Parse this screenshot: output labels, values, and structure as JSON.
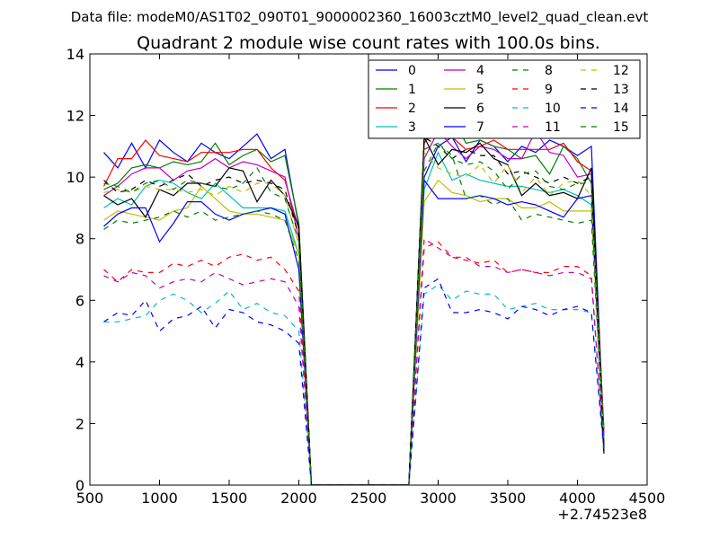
{
  "suptitle": "Data file: modeM0/AS1T02_090T01_9000002360_16003cztM0_level2_quad_clean.evt",
  "chart_data": {
    "type": "line",
    "title": "Quadrant 2 module wise count rates with 100.0s bins.",
    "xlabel": "",
    "ylabel": "",
    "x_offset_label": "+2.74523e8",
    "xlim": [
      500,
      4500
    ],
    "ylim": [
      0,
      14
    ],
    "xticks": [
      500,
      1000,
      1500,
      2000,
      2500,
      3000,
      3500,
      4000,
      4500
    ],
    "yticks": [
      0,
      2,
      4,
      6,
      8,
      10,
      12,
      14
    ],
    "grid": false,
    "legend": {
      "placement": "top-right",
      "columns": 4
    },
    "x": [
      600,
      700,
      800,
      900,
      1000,
      1100,
      1200,
      1300,
      1400,
      1500,
      1600,
      1700,
      1800,
      1900,
      2000,
      2090,
      2790,
      2900,
      3000,
      3100,
      3200,
      3300,
      3400,
      3500,
      3600,
      3700,
      3800,
      3900,
      4000,
      4100,
      4190
    ],
    "series": [
      {
        "name": "0",
        "color": "#0000ff",
        "dash": "solid",
        "values": [
          10.8,
          10.3,
          11.1,
          10.3,
          11.2,
          10.8,
          10.5,
          11.1,
          10.8,
          10.6,
          11.0,
          11.4,
          10.6,
          10.9,
          8.4,
          0,
          0,
          10.0,
          11.0,
          11.3,
          10.5,
          11.2,
          11.0,
          10.5,
          11.0,
          10.8,
          11.2,
          11.0,
          10.7,
          11.0,
          1.5
        ]
      },
      {
        "name": "1",
        "color": "#008000",
        "dash": "solid",
        "values": [
          9.6,
          9.8,
          10.3,
          10.4,
          10.3,
          10.5,
          10.4,
          10.5,
          11.1,
          10.4,
          10.7,
          10.9,
          10.5,
          10.7,
          8.5,
          0,
          0,
          11.2,
          12.0,
          12.0,
          11.1,
          11.2,
          11.0,
          10.9,
          10.6,
          10.7,
          10.1,
          11.0,
          10.6,
          9.8,
          1.8
        ]
      },
      {
        "name": "2",
        "color": "#ff0000",
        "dash": "solid",
        "values": [
          9.7,
          10.6,
          10.6,
          11.2,
          10.7,
          10.6,
          10.5,
          10.8,
          10.8,
          10.8,
          10.9,
          10.9,
          10.3,
          9.9,
          8.3,
          0,
          0,
          11.1,
          11.7,
          11.3,
          10.9,
          11.0,
          11.2,
          10.9,
          10.9,
          10.9,
          10.9,
          11.1,
          10.5,
          10.2,
          1.5
        ]
      },
      {
        "name": "3",
        "color": "#00bfbf",
        "dash": "solid",
        "values": [
          9.0,
          9.3,
          9.1,
          9.7,
          9.9,
          9.8,
          9.5,
          9.3,
          9.8,
          9.4,
          9.0,
          9.0,
          9.0,
          8.9,
          7.5,
          0,
          0,
          9.6,
          10.8,
          9.9,
          10.1,
          9.9,
          9.8,
          9.7,
          9.7,
          9.6,
          9.5,
          9.6,
          9.4,
          9.1,
          1.4
        ]
      },
      {
        "name": "4",
        "color": "#bf00bf",
        "dash": "solid",
        "values": [
          9.4,
          9.7,
          10.1,
          10.3,
          10.3,
          9.9,
          10.2,
          10.3,
          10.6,
          10.3,
          10.5,
          10.4,
          10.2,
          10.0,
          8.0,
          0,
          0,
          10.6,
          11.5,
          11.0,
          10.6,
          11.0,
          10.9,
          10.6,
          10.6,
          11.5,
          10.8,
          10.7,
          10.0,
          10.1,
          1.6
        ]
      },
      {
        "name": "5",
        "color": "#bfbf00",
        "dash": "solid",
        "values": [
          8.6,
          8.9,
          8.8,
          8.7,
          8.6,
          8.9,
          9.0,
          9.7,
          9.3,
          8.9,
          8.8,
          8.8,
          8.7,
          8.6,
          7.5,
          0,
          0,
          9.2,
          9.9,
          9.5,
          9.4,
          9.2,
          9.3,
          9.3,
          9.0,
          9.0,
          9.2,
          8.9,
          8.9,
          8.9,
          1.3
        ]
      },
      {
        "name": "6",
        "color": "#000000",
        "dash": "solid",
        "values": [
          9.4,
          9.1,
          9.3,
          8.7,
          9.6,
          9.4,
          9.8,
          9.8,
          9.7,
          10.3,
          10.2,
          9.2,
          9.9,
          9.4,
          8.4,
          0,
          0,
          11.3,
          10.4,
          10.9,
          10.8,
          11.1,
          10.6,
          10.4,
          9.4,
          9.8,
          9.4,
          9.5,
          9.3,
          10.3,
          1.3
        ]
      },
      {
        "name": "7",
        "color": "#0000ff",
        "dash": "solid",
        "values": [
          8.4,
          8.8,
          9.0,
          9.0,
          7.9,
          8.5,
          9.2,
          9.2,
          8.8,
          8.6,
          8.8,
          8.9,
          9.0,
          8.8,
          7.0,
          0,
          0,
          9.9,
          9.3,
          9.3,
          9.3,
          9.4,
          9.3,
          9.1,
          9.2,
          9.1,
          8.9,
          8.7,
          9.3,
          9.4,
          1.2
        ]
      },
      {
        "name": "8",
        "color": "#008000",
        "dash": "dashed",
        "values": [
          8.3,
          8.6,
          8.5,
          8.6,
          8.7,
          8.9,
          8.7,
          8.9,
          8.6,
          8.7,
          8.8,
          8.9,
          8.8,
          8.6,
          7.3,
          0,
          0,
          10.2,
          11.1,
          10.7,
          9.3,
          9.4,
          9.1,
          9.3,
          8.6,
          8.8,
          8.7,
          8.6,
          8.5,
          8.6,
          1.2
        ]
      },
      {
        "name": "9",
        "color": "#ff0000",
        "dash": "dashed",
        "values": [
          7.0,
          6.6,
          7.0,
          6.9,
          6.9,
          7.2,
          7.1,
          7.3,
          7.1,
          7.4,
          7.5,
          7.3,
          7.4,
          7.0,
          6.3,
          0,
          0,
          7.7,
          7.9,
          7.4,
          7.3,
          7.2,
          7.3,
          6.9,
          7.0,
          6.9,
          6.9,
          7.1,
          7.1,
          6.8,
          1.1
        ]
      },
      {
        "name": "10",
        "color": "#00bfbf",
        "dash": "dashed",
        "values": [
          5.3,
          5.3,
          5.4,
          5.5,
          6.0,
          6.2,
          6.0,
          5.6,
          5.9,
          6.3,
          5.7,
          5.9,
          5.6,
          5.5,
          5.0,
          0,
          0,
          6.2,
          6.5,
          6.0,
          6.3,
          6.2,
          6.2,
          5.7,
          5.8,
          5.9,
          5.7,
          5.7,
          5.7,
          5.6,
          1.0
        ]
      },
      {
        "name": "11",
        "color": "#bf00bf",
        "dash": "dashed",
        "values": [
          6.8,
          6.6,
          6.9,
          6.8,
          6.4,
          6.6,
          6.7,
          6.6,
          6.9,
          6.7,
          6.5,
          6.6,
          6.7,
          6.6,
          5.8,
          0,
          0,
          8.0,
          7.7,
          7.4,
          7.4,
          7.1,
          7.1,
          6.9,
          7.0,
          6.9,
          6.8,
          6.9,
          6.9,
          6.7,
          1.1
        ]
      },
      {
        "name": "12",
        "color": "#bfbf00",
        "dash": "dashed",
        "values": [
          9.5,
          9.6,
          9.5,
          9.7,
          9.6,
          9.6,
          9.5,
          9.6,
          9.4,
          9.7,
          9.5,
          9.8,
          9.8,
          9.4,
          7.8,
          0,
          0,
          10.8,
          10.3,
          10.1,
          10.0,
          10.4,
          9.8,
          10.4,
          9.5,
          10.0,
          9.4,
          9.8,
          9.9,
          9.4,
          1.4
        ]
      },
      {
        "name": "13",
        "color": "#000000",
        "dash": "dashed",
        "values": [
          9.9,
          9.5,
          9.6,
          9.9,
          9.7,
          9.9,
          10.1,
          9.7,
          9.9,
          10.0,
          9.8,
          9.9,
          9.8,
          9.6,
          8.1,
          0,
          0,
          11.3,
          11.0,
          10.6,
          10.9,
          10.7,
          10.7,
          10.1,
          10.2,
          10.0,
          9.8,
          10.0,
          9.8,
          10.0,
          1.0
        ]
      },
      {
        "name": "14",
        "color": "#0000ff",
        "dash": "dashed",
        "values": [
          5.3,
          5.6,
          5.5,
          6.0,
          5.0,
          5.4,
          5.5,
          5.8,
          5.1,
          5.7,
          5.6,
          5.3,
          5.2,
          5.0,
          4.6,
          0,
          0,
          6.4,
          6.7,
          5.6,
          5.6,
          5.7,
          5.6,
          5.4,
          5.8,
          5.7,
          5.5,
          5.7,
          5.8,
          5.6,
          1.2
        ]
      },
      {
        "name": "15",
        "color": "#008000",
        "dash": "dashed",
        "values": [
          9.8,
          9.7,
          9.5,
          9.8,
          9.9,
          9.6,
          9.9,
          9.8,
          9.7,
          9.6,
          9.8,
          10.3,
          9.5,
          9.3,
          7.9,
          0,
          0,
          10.9,
          11.1,
          10.6,
          10.4,
          10.5,
          10.2,
          9.6,
          10.1,
          10.2,
          9.7,
          9.6,
          9.8,
          9.8,
          1.4
        ]
      }
    ]
  }
}
